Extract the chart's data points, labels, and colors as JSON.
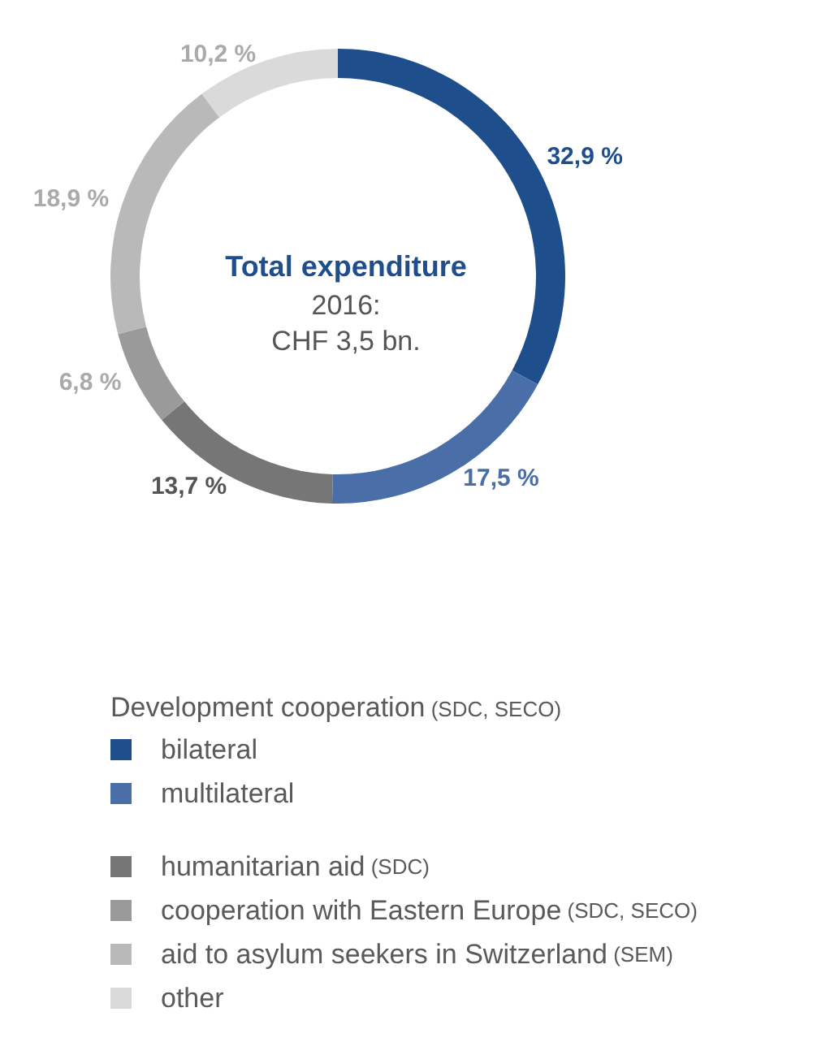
{
  "chart_data": {
    "type": "donut",
    "title": "Total expenditure",
    "subtitle": "2016:\nCHF 3,5 bn.",
    "legend_title": "Development cooperation (SDC, SECO)",
    "categories": [
      "bilateral",
      "multilateral",
      "humanitarian aid (SDC)",
      "cooperation with Eastern Europe (SDC, SECO)",
      "aid to asylum seekers in Switzerland (SEM)",
      "other"
    ],
    "values": [
      32.9,
      17.5,
      13.7,
      6.8,
      18.9,
      10.2
    ],
    "value_labels": [
      "32,9 %",
      "17,5 %",
      "13,7 %",
      "6,8 %",
      "18,9 %",
      "10,2 %"
    ],
    "colors": [
      "#1f4e8c",
      "#4a6ea8",
      "#767676",
      "#9a9a9a",
      "#b9b9b9",
      "#dadada"
    ],
    "legend": "bottom"
  }
}
